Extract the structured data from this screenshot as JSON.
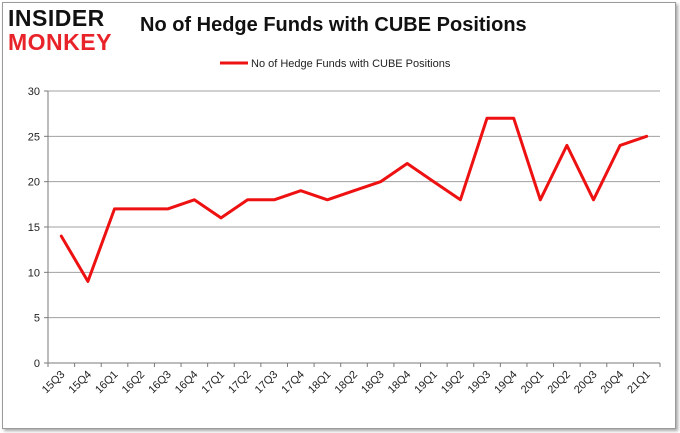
{
  "logo": {
    "line1": "INSIDER",
    "line2": "MONKEY"
  },
  "chart_data": {
    "type": "line",
    "title": "No of Hedge Funds with CUBE Positions",
    "xlabel": "",
    "ylabel": "",
    "ylim": [
      0,
      30
    ],
    "yticks": [
      0,
      5,
      10,
      15,
      20,
      25,
      30
    ],
    "grid": true,
    "legend_position": "top-center",
    "categories": [
      "15Q3",
      "15Q4",
      "16Q1",
      "16Q2",
      "16Q3",
      "16Q4",
      "17Q1",
      "17Q2",
      "17Q3",
      "17Q4",
      "18Q1",
      "18Q2",
      "18Q3",
      "18Q4",
      "19Q1",
      "19Q2",
      "19Q3",
      "19Q4",
      "20Q1",
      "20Q2",
      "20Q3",
      "20Q4",
      "21Q1"
    ],
    "series": [
      {
        "name": "No of Hedge Funds with CUBE Positions",
        "color": "#ee1111",
        "values": [
          14,
          9,
          17,
          17,
          17,
          18,
          16,
          18,
          18,
          19,
          18,
          19,
          20,
          22,
          20,
          18,
          27,
          27,
          18,
          24,
          18,
          24,
          25
        ]
      }
    ]
  }
}
